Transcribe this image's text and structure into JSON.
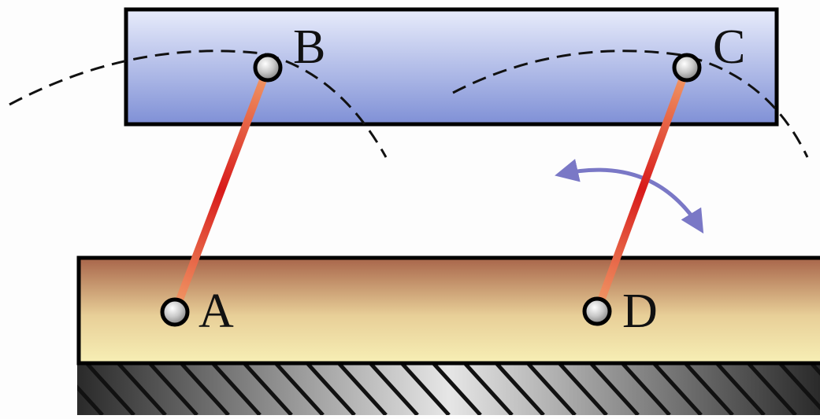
{
  "labels": {
    "A": "A",
    "B": "B",
    "C": "C",
    "D": "D"
  },
  "colors": {
    "background": "#fdfdfd",
    "coupler_top": "#e8ecfb",
    "coupler_bottom": "#7f90d6",
    "ground_top": "#a8654a",
    "ground_bottom": "#f7efb5",
    "link_end": "#f2a06a",
    "link_mid": "#d81a1a",
    "arrow": "#7a78c6",
    "joint_fill": "#c8c8c8",
    "outline": "#000000"
  },
  "icons": {
    "joints": "pin-joint-icon",
    "swing_arrow": "double-arrow-icon",
    "ground_hatch": "hatched-ground-icon"
  }
}
